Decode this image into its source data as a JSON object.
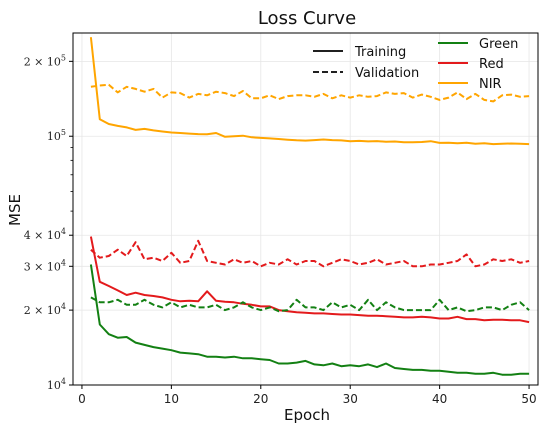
{
  "chart_data": {
    "type": "line",
    "title": "Loss Curve",
    "xlabel": "Epoch",
    "ylabel": "MSE",
    "yscale": "log",
    "xlim": [
      -1,
      51
    ],
    "ylim": [
      10000,
      260000
    ],
    "grid": true,
    "xticks": [
      0,
      10,
      20,
      30,
      40,
      50
    ],
    "xtick_labels": [
      "0",
      "10",
      "20",
      "30",
      "40",
      "50"
    ],
    "yticks": [
      10000,
      20000,
      30000,
      40000,
      100000,
      200000
    ],
    "ytick_labels": [
      {
        "mantissa": "10",
        "exp": "4",
        "mult": ""
      },
      {
        "mantissa": "10",
        "exp": "4",
        "mult": "2 × "
      },
      {
        "mantissa": "10",
        "exp": "4",
        "mult": "3 × "
      },
      {
        "mantissa": "10",
        "exp": "4",
        "mult": "4 × "
      },
      {
        "mantissa": "10",
        "exp": "5",
        "mult": ""
      },
      {
        "mantissa": "10",
        "exp": "5",
        "mult": "2 × "
      }
    ],
    "legend_style": {
      "placement": "top-center",
      "entries": [
        {
          "label": "Training",
          "dash": "solid"
        },
        {
          "label": "Validation",
          "dash": "dashed"
        }
      ]
    },
    "legend_color": {
      "placement": "top-right",
      "entries": [
        {
          "label": "Green",
          "color": "#138013"
        },
        {
          "label": "Red",
          "color": "#e31a1c"
        },
        {
          "label": "NIR",
          "color": "#ffa500"
        }
      ]
    },
    "x_start": 1,
    "series": [
      {
        "name": "NIR",
        "kind": "training",
        "color": "#ffa500",
        "dash": "solid",
        "values": [
          250000,
          117000,
          112000,
          110000,
          108500,
          106000,
          107000,
          105500,
          104500,
          103500,
          103000,
          102500,
          102000,
          101800,
          103000,
          99500,
          100000,
          100500,
          99000,
          98500,
          98000,
          97500,
          96800,
          96300,
          96000,
          96500,
          97000,
          96500,
          96200,
          95500,
          95800,
          95300,
          95600,
          95000,
          95200,
          94600,
          94500,
          94800,
          95500,
          94000,
          94200,
          93700,
          94200,
          93300,
          93700,
          93000,
          93300,
          93500,
          93200,
          93000
        ]
      },
      {
        "name": "NIR",
        "kind": "validation",
        "color": "#ffa500",
        "dash": "dashed",
        "values": [
          158000,
          160000,
          161000,
          150000,
          158000,
          155000,
          151000,
          155000,
          143000,
          150000,
          149000,
          143000,
          148000,
          146000,
          151000,
          149000,
          145000,
          152000,
          142000,
          142000,
          146000,
          141000,
          145000,
          146000,
          146000,
          144000,
          148000,
          142000,
          146000,
          143000,
          146000,
          144000,
          145000,
          150000,
          148000,
          149000,
          143000,
          147000,
          144000,
          140000,
          143000,
          150000,
          141000,
          148000,
          140000,
          138000,
          146000,
          147000,
          144000,
          145000
        ]
      },
      {
        "name": "Red",
        "kind": "training",
        "color": "#e31a1c",
        "dash": "solid",
        "values": [
          39500,
          26000,
          25000,
          24000,
          23000,
          23500,
          23000,
          22800,
          22500,
          22000,
          21700,
          21800,
          21700,
          23800,
          21800,
          21600,
          21500,
          21200,
          21000,
          20700,
          20700,
          20000,
          19800,
          19600,
          19500,
          19400,
          19400,
          19300,
          19200,
          19200,
          19100,
          19000,
          19000,
          18900,
          18800,
          18700,
          18700,
          18800,
          18700,
          18500,
          18500,
          18800,
          18400,
          18400,
          18200,
          18300,
          18300,
          18200,
          18200,
          17900
        ]
      },
      {
        "name": "Red",
        "kind": "validation",
        "color": "#e31a1c",
        "dash": "dashed",
        "values": [
          35000,
          32500,
          33000,
          35000,
          33000,
          37500,
          32000,
          32500,
          31500,
          34000,
          31000,
          31500,
          38000,
          31500,
          31000,
          30500,
          32000,
          31000,
          31500,
          30000,
          31000,
          30500,
          32000,
          30500,
          31500,
          31500,
          30000,
          31000,
          32000,
          31500,
          30500,
          31000,
          32000,
          30500,
          31000,
          31500,
          30000,
          30000,
          30500,
          30500,
          31000,
          31500,
          33500,
          30000,
          30500,
          32000,
          31500,
          32000,
          31000,
          31500
        ]
      },
      {
        "name": "Green",
        "kind": "training",
        "color": "#138013",
        "dash": "solid",
        "values": [
          30500,
          17500,
          16000,
          15500,
          15600,
          14800,
          14500,
          14200,
          14000,
          13800,
          13500,
          13400,
          13300,
          13000,
          13000,
          12900,
          13000,
          12800,
          12800,
          12700,
          12600,
          12200,
          12200,
          12300,
          12500,
          12100,
          12000,
          12200,
          11900,
          12000,
          11900,
          12100,
          11800,
          12200,
          11700,
          11600,
          11500,
          11500,
          11400,
          11400,
          11300,
          11200,
          11200,
          11100,
          11100,
          11200,
          11000,
          11000,
          11100,
          11100
        ]
      },
      {
        "name": "Green",
        "kind": "validation",
        "color": "#138013",
        "dash": "dashed",
        "values": [
          22500,
          21500,
          21500,
          22000,
          21000,
          21000,
          22000,
          21000,
          20500,
          21500,
          20500,
          21000,
          20500,
          20500,
          21000,
          20000,
          20500,
          21500,
          20500,
          20000,
          20500,
          19800,
          20000,
          22000,
          20500,
          20500,
          20000,
          21500,
          20500,
          21000,
          20000,
          22000,
          20000,
          21500,
          20500,
          20000,
          20000,
          20000,
          20000,
          22000,
          20000,
          20500,
          19800,
          20000,
          20500,
          20500,
          20000,
          21000,
          21500,
          20000
        ]
      }
    ]
  }
}
